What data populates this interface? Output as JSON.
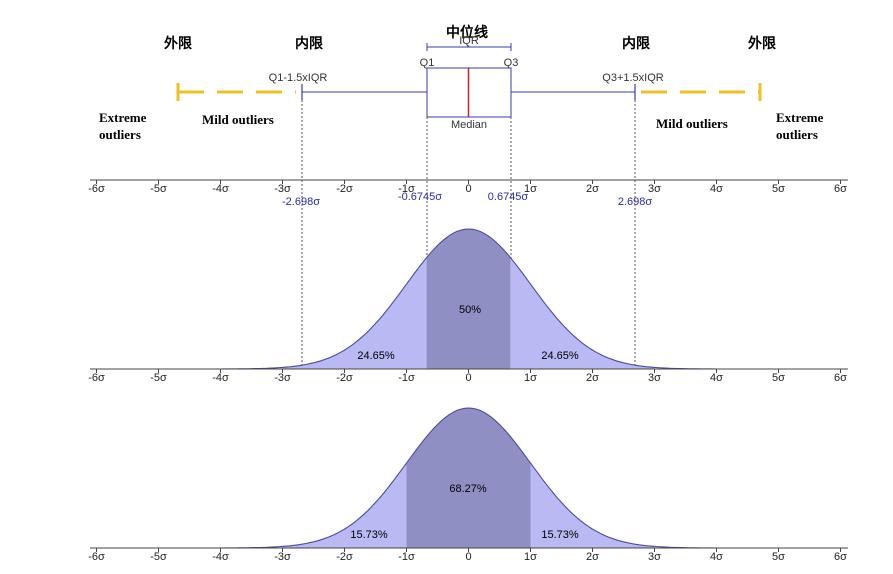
{
  "headers": {
    "median_line": "中位线",
    "outer_fence_left": "外限",
    "inner_fence_left": "内限",
    "inner_fence_right": "内限",
    "outer_fence_right": "外限"
  },
  "boxplot": {
    "iqr_label": "IQR",
    "q1_label": "Q1",
    "q3_label": "Q3",
    "median_label": "Median",
    "lower_whisker_label": "Q1-1.5xIQR",
    "upper_whisker_label": "Q3+1.5xIQR",
    "q1": -0.6745,
    "q3": 0.6745,
    "median": 0,
    "lower_fence": -2.698,
    "upper_fence": 2.698,
    "outer_lower": -4.7,
    "outer_upper": 4.7
  },
  "outliers": {
    "extreme_left_line1": "Extreme",
    "extreme_left_line2": "outliers",
    "mild_left": "Mild outliers",
    "mild_right": "Mild outliers",
    "extreme_right_line1": "Extreme",
    "extreme_right_line2": "outliers"
  },
  "axis_ticks": [
    "-6σ",
    "-5σ",
    "-4σ",
    "-3σ",
    "-2σ",
    "-1σ",
    "0",
    "1σ",
    "2σ",
    "3σ",
    "4σ",
    "5σ",
    "6σ"
  ],
  "marked_values": {
    "neg_fence": "-2.698σ",
    "neg_q1": "-0.6745σ",
    "pos_q3": "0.6745σ",
    "pos_fence": "2.698σ"
  },
  "panel_iqr": {
    "left_pct": "24.65%",
    "center_pct": "50%",
    "right_pct": "24.65%"
  },
  "panel_sigma": {
    "left_pct": "15.73%",
    "center_pct": "68.27%",
    "right_pct": "15.73%"
  },
  "colors": {
    "curve_fill": "#b9b9f3",
    "center_fill": "#8f8fc3",
    "curve_line": "#4a4aa8",
    "whisker": "#3a3ab0",
    "median": "#cc2222",
    "outer_dash": "#f0c020"
  }
}
